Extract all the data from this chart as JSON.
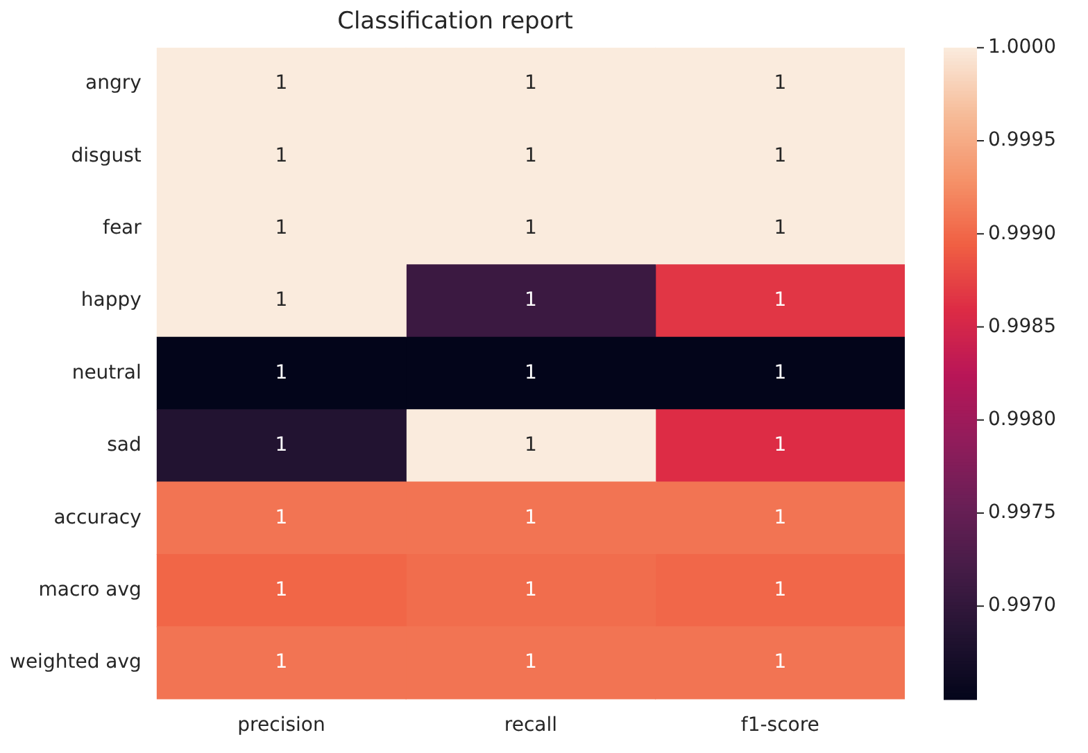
{
  "chart_data": {
    "type": "heatmap",
    "title": "Classification report",
    "categories": [
      "precision",
      "recall",
      "f1-score"
    ],
    "y_categories": [
      "angry",
      "disgust",
      "fear",
      "happy",
      "neutral",
      "sad",
      "accuracy",
      "macro avg",
      "weighted avg"
    ],
    "cells": [
      [
        1.0,
        1.0,
        1.0
      ],
      [
        1.0,
        1.0,
        1.0
      ],
      [
        1.0,
        1.0,
        1.0
      ],
      [
        1.0,
        0.9971,
        0.99867
      ],
      [
        0.9965,
        0.9965,
        0.9965
      ],
      [
        0.99685,
        1.0,
        0.9986
      ],
      [
        0.99909,
        0.99909,
        0.99909
      ],
      [
        0.99899,
        0.99904,
        0.999
      ],
      [
        0.99909,
        0.99909,
        0.99909
      ]
    ],
    "cell_labels": [
      [
        "1",
        "1",
        "1"
      ],
      [
        "1",
        "1",
        "1"
      ],
      [
        "1",
        "1",
        "1"
      ],
      [
        "1",
        "1",
        "1"
      ],
      [
        "1",
        "1",
        "1"
      ],
      [
        "1",
        "1",
        "1"
      ],
      [
        "1",
        "1",
        "1"
      ],
      [
        "1",
        "1",
        "1"
      ],
      [
        "1",
        "1",
        "1"
      ]
    ],
    "clim": [
      0.9965,
      1.0
    ],
    "cticks": [
      {
        "value": 0.997,
        "label": "0.9970"
      },
      {
        "value": 0.9975,
        "label": "0.9975"
      },
      {
        "value": 0.998,
        "label": "0.9980"
      },
      {
        "value": 0.9985,
        "label": "0.9985"
      },
      {
        "value": 0.999,
        "label": "0.9990"
      },
      {
        "value": 0.9995,
        "label": "0.9995"
      },
      {
        "value": 1.0,
        "label": "1.0000"
      }
    ]
  }
}
